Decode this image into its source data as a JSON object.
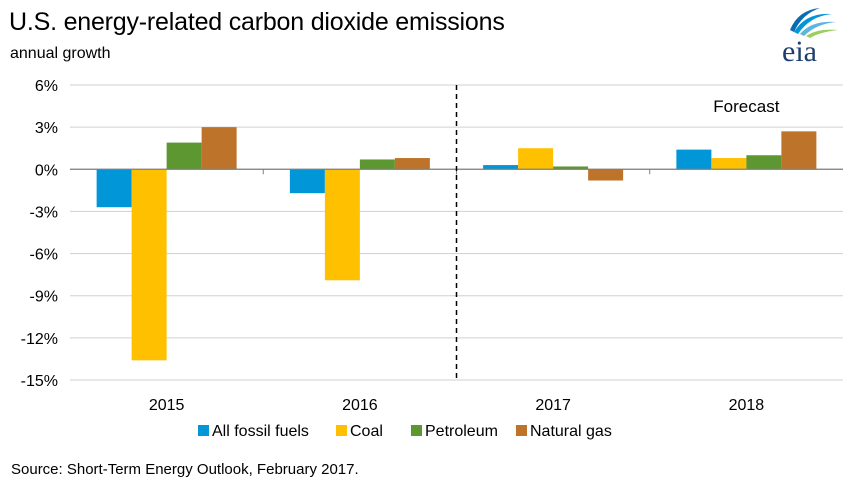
{
  "header": {
    "title": "U.S. energy-related carbon dioxide emissions",
    "subtitle": "annual growth",
    "logo_text": "eia"
  },
  "footer": {
    "source": "Source: Short-Term Energy Outlook, February 2017."
  },
  "chart_data": {
    "type": "bar",
    "categories": [
      "2015",
      "2016",
      "2017",
      "2018"
    ],
    "series": [
      {
        "name": "All fossil fuels",
        "color": "#0096d7",
        "values": [
          -2.7,
          -1.7,
          0.3,
          1.4
        ]
      },
      {
        "name": "Coal",
        "color": "#ffc000",
        "values": [
          -13.6,
          -7.9,
          1.5,
          0.8
        ]
      },
      {
        "name": "Petroleum",
        "color": "#5d9732",
        "values": [
          1.9,
          0.7,
          0.2,
          1.0
        ]
      },
      {
        "name": "Natural gas",
        "color": "#bd732a",
        "values": [
          3.0,
          0.8,
          -0.8,
          2.7
        ]
      }
    ],
    "ylim": [
      -15,
      6
    ],
    "yticks": [
      6,
      3,
      0,
      -3,
      -6,
      -9,
      -12,
      -15
    ],
    "ytick_labels": [
      "6%",
      "3%",
      "0%",
      "-3%",
      "-6%",
      "-9%",
      "-12%",
      "-15%"
    ],
    "grid": true,
    "legend_position": "bottom",
    "annotation": "Forecast",
    "forecast_divider_between": [
      "2016",
      "2017"
    ]
  }
}
